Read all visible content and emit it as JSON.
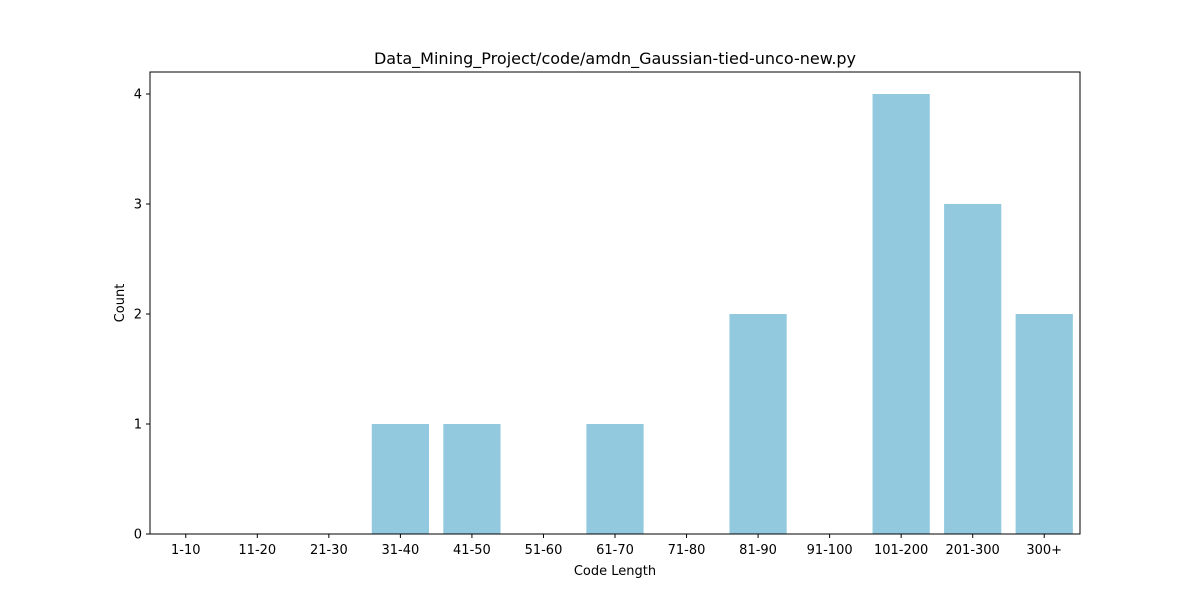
{
  "chart_data": {
    "type": "bar",
    "title": "Data_Mining_Project/code/amdn_Gaussian-tied-unco-new.py",
    "xlabel": "Code Length",
    "ylabel": "Count",
    "categories": [
      "1-10",
      "11-20",
      "21-30",
      "31-40",
      "41-50",
      "51-60",
      "61-70",
      "71-80",
      "81-90",
      "91-100",
      "101-200",
      "201-300",
      "300+"
    ],
    "values": [
      0,
      0,
      0,
      1,
      1,
      0,
      1,
      0,
      2,
      0,
      4,
      3,
      2
    ],
    "ylim": [
      0,
      4.2
    ],
    "yticks": [
      0,
      1,
      2,
      3,
      4
    ],
    "bar_color": "#92c9df",
    "grid": false,
    "legend": "none"
  }
}
